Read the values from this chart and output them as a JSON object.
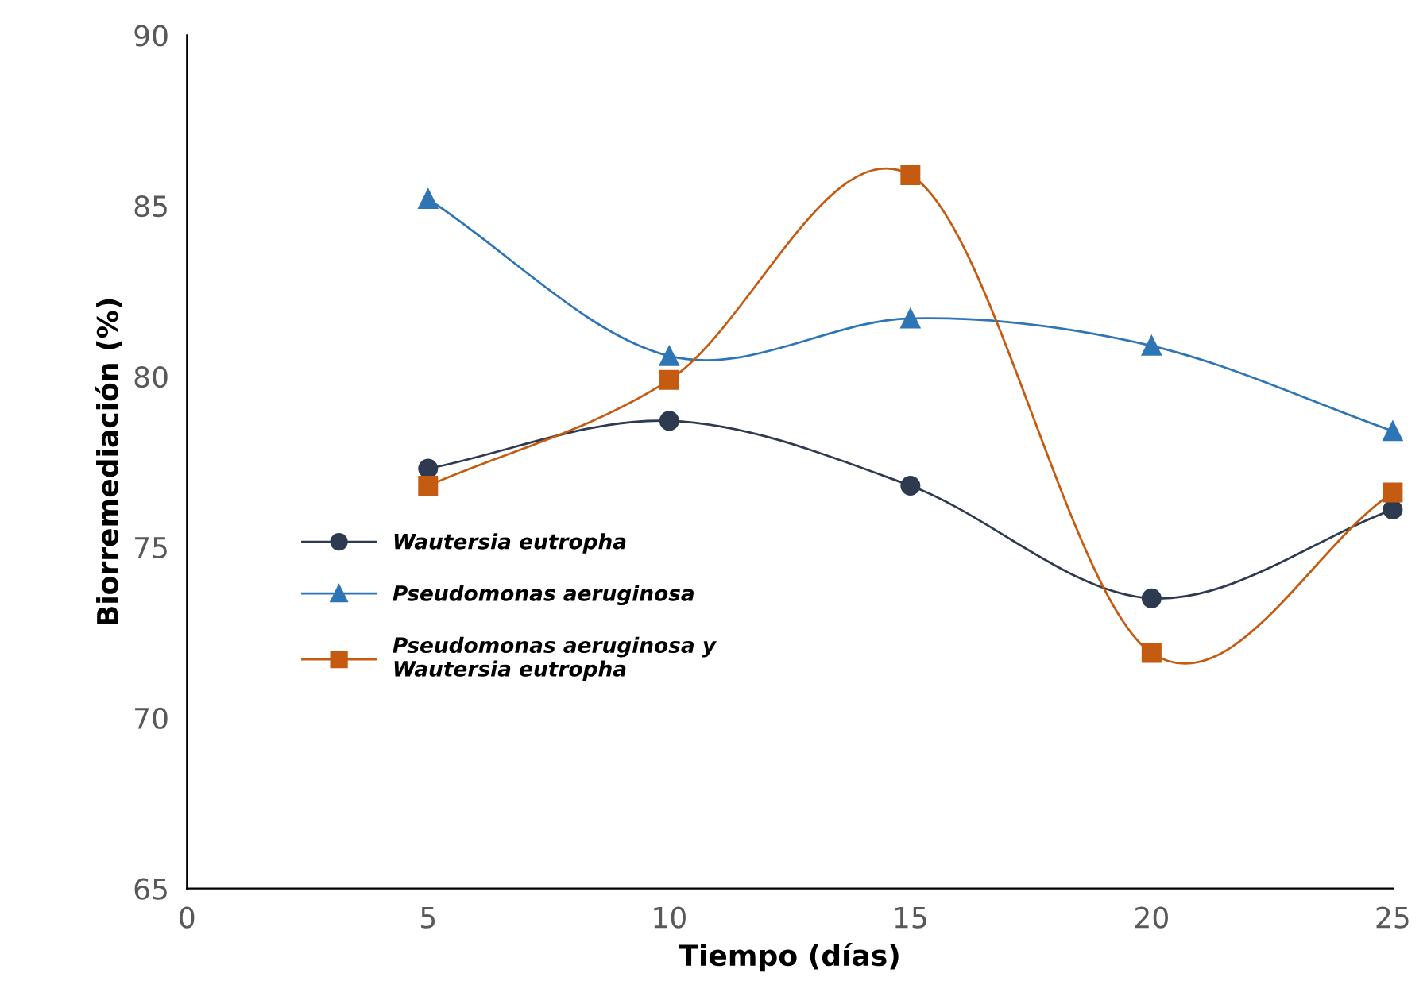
{
  "chart_data": {
    "type": "line",
    "xlabel": "Tiempo (días)",
    "ylabel": "Biorremediación (%)",
    "x": [
      5,
      10,
      15,
      20,
      25
    ],
    "series": [
      {
        "name": "Wautersia eutropha",
        "color": "#2e3a4f",
        "marker": "circle",
        "values": [
          77.3,
          78.7,
          76.8,
          73.5,
          76.1
        ]
      },
      {
        "name": "Pseudomonas aeruginosa",
        "color": "#2e75b6",
        "marker": "triangle",
        "values": [
          85.2,
          80.6,
          81.7,
          80.9,
          78.4
        ]
      },
      {
        "name": "Pseudomonas aeruginosa y\nWautersia eutropha",
        "color": "#c55a11",
        "marker": "square",
        "values": [
          76.8,
          79.9,
          85.9,
          71.9,
          76.6
        ]
      }
    ],
    "xlim": [
      0,
      25
    ],
    "xticks": [
      0,
      5,
      10,
      15,
      20,
      25
    ],
    "ylim": [
      65,
      90
    ],
    "yticks": [
      65,
      70,
      75,
      80,
      85,
      90
    ],
    "grid": false,
    "legend": "left",
    "line_style": "solid"
  }
}
